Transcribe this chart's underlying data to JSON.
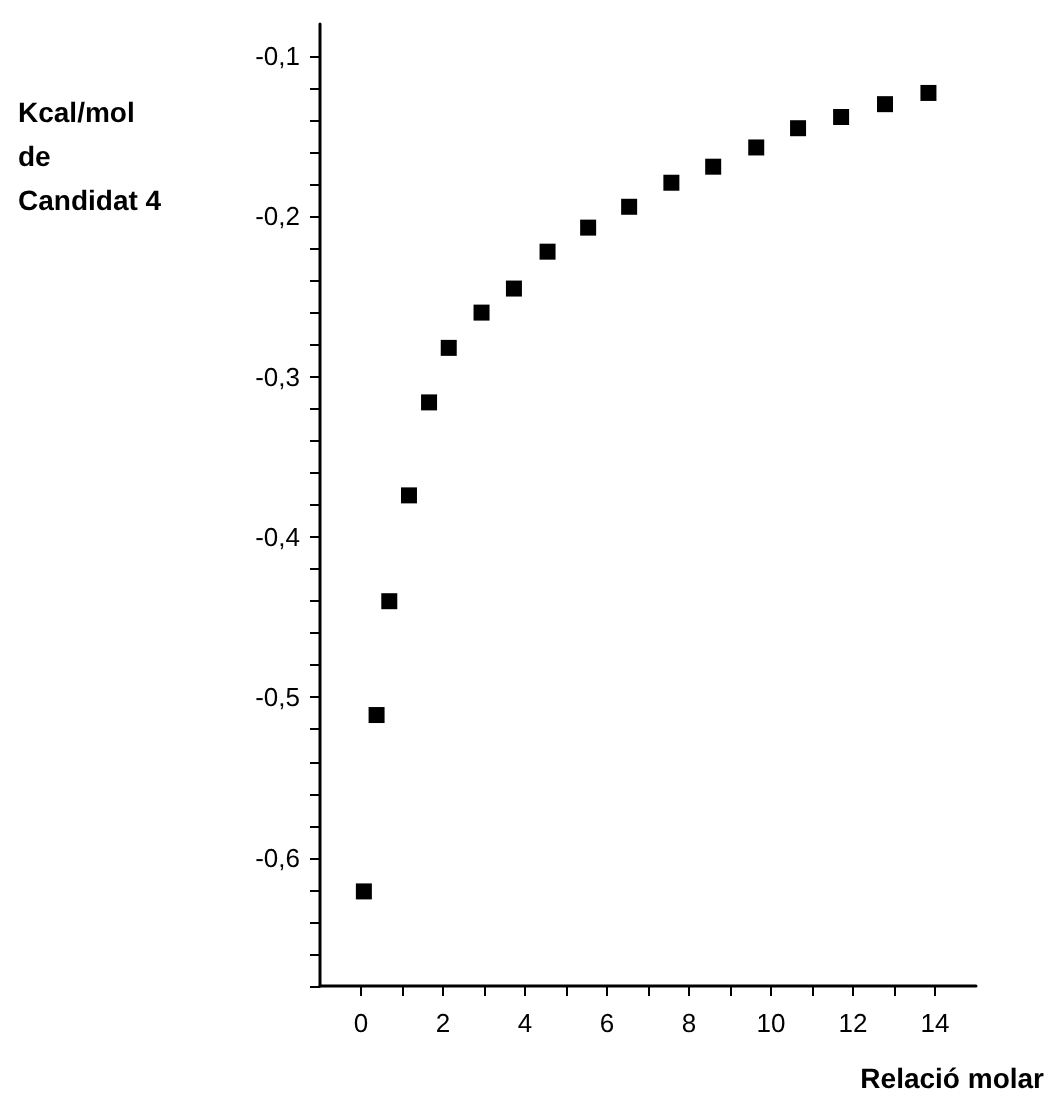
{
  "chart_data": {
    "type": "scatter",
    "xlabel": "Relació molar",
    "ylabel": "Kcal/mol\nde\nCandidat 4",
    "x": [
      0.07,
      0.38,
      0.69,
      1.17,
      1.66,
      2.14,
      2.94,
      3.73,
      4.55,
      5.54,
      6.54,
      7.57,
      8.59,
      9.64,
      10.66,
      11.71,
      12.78,
      13.84
    ],
    "series": [
      {
        "color": "#000000",
        "values": [
          -0.621,
          -0.511,
          -0.44,
          -0.374,
          -0.316,
          -0.282,
          -0.26,
          -0.245,
          -0.222,
          -0.207,
          -0.194,
          -0.179,
          -0.169,
          -0.157,
          -0.145,
          -0.138,
          -0.13,
          -0.123
        ]
      }
    ],
    "xlim": [
      -1,
      15
    ],
    "xticks": [
      0,
      {
        "value": 1,
        "label": null
      },
      2,
      {
        "value": 3,
        "label": null
      },
      4,
      {
        "value": 5,
        "label": null
      },
      6,
      {
        "value": 7,
        "label": null
      },
      8,
      {
        "value": 9,
        "label": null
      },
      10,
      {
        "value": 11,
        "label": null
      },
      12,
      {
        "value": 13,
        "label": null
      },
      14
    ],
    "ylim": [
      -0.68,
      -0.08
    ],
    "yticks": [
      {
        "value": -0.68,
        "label": null
      },
      {
        "value": -0.66,
        "label": null
      },
      {
        "value": -0.64,
        "label": null
      },
      {
        "value": -0.62,
        "label": null
      },
      {
        "value": -0.6,
        "label": "-0,6"
      },
      {
        "value": -0.58,
        "label": null
      },
      {
        "value": -0.56,
        "label": null
      },
      {
        "value": -0.54,
        "label": null
      },
      {
        "value": -0.52,
        "label": null
      },
      {
        "value": -0.5,
        "label": "-0,5"
      },
      {
        "value": -0.48,
        "label": null
      },
      {
        "value": -0.46,
        "label": null
      },
      {
        "value": -0.44,
        "label": null
      },
      {
        "value": -0.42,
        "label": null
      },
      {
        "value": -0.4,
        "label": "-0,4"
      },
      {
        "value": -0.38,
        "label": null
      },
      {
        "value": -0.36,
        "label": null
      },
      {
        "value": -0.34,
        "label": null
      },
      {
        "value": -0.32,
        "label": null
      },
      {
        "value": -0.3,
        "label": "-0,3"
      },
      {
        "value": -0.28,
        "label": null
      },
      {
        "value": -0.26,
        "label": null
      },
      {
        "value": -0.24,
        "label": null
      },
      {
        "value": -0.22,
        "label": null
      },
      {
        "value": -0.2,
        "label": "-0,2"
      },
      {
        "value": -0.18,
        "label": null
      },
      {
        "value": -0.16,
        "label": null
      },
      {
        "value": -0.14,
        "label": null
      },
      {
        "value": -0.12,
        "label": null
      },
      {
        "value": -0.1,
        "label": "-0,1"
      }
    ],
    "grid": false,
    "marker": "square"
  }
}
